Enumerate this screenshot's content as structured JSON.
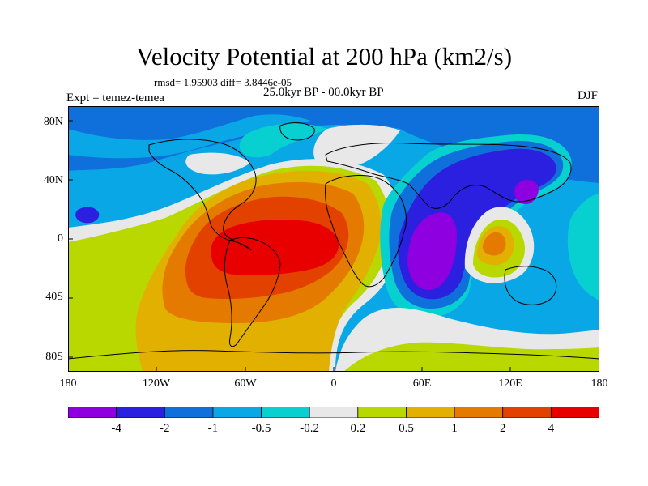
{
  "title": "Velocity Potential at 200 hPa (km2/s)",
  "stats": "rmsd= 1.95903 diff= 3.8446e-05",
  "period": "25.0kyr BP - 00.0kyr BP",
  "experiment": "Expt = temez-temea",
  "season": "DJF",
  "lat_ticks": [
    "80N",
    "40N",
    "0",
    "40S",
    "80S"
  ],
  "lon_ticks": [
    "180",
    "120W",
    "60W",
    "0",
    "60E",
    "120E",
    "180"
  ],
  "colorbar": {
    "labels": [
      "-4",
      "-2",
      "-1",
      "-0.5",
      "-0.2",
      "0.2",
      "0.5",
      "1",
      "2",
      "4"
    ],
    "colors": [
      "#8e00e0",
      "#2b1fe0",
      "#0f70dc",
      "#0aa7e6",
      "#09d0d0",
      "#e8e8e8",
      "#b9d800",
      "#e2b000",
      "#e47a00",
      "#e34100",
      "#e80000"
    ]
  },
  "colors": {
    "neg_strong": "#8e00e0",
    "neg_2": "#2b1fe0",
    "neg_1": "#0f70dc",
    "neg_05": "#0aa7e6",
    "neg_02": "#09d0d0",
    "neutral": "#e8e8e8",
    "pos_02": "#b9d800",
    "pos_05": "#e2b000",
    "pos_1": "#e47a00",
    "pos_2": "#e34100",
    "pos_4": "#e80000"
  }
}
